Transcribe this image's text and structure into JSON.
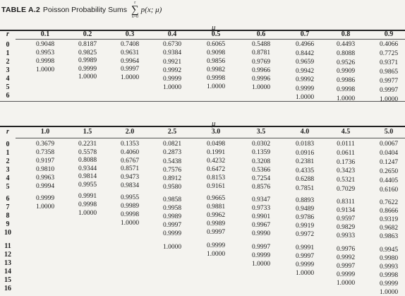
{
  "title": {
    "label": "TABLE A.2",
    "name": "Poisson Probability Sums",
    "sum_upper": "r",
    "sum_symbol": "∑",
    "sum_lower": "x=0",
    "function": "p(x; μ)"
  },
  "tables": [
    {
      "r_header": "r",
      "mu_label": "μ",
      "columns": [
        "0.1",
        "0.2",
        "0.3",
        "0.4",
        "0.5",
        "0.6",
        "0.7",
        "0.8",
        "0.9"
      ],
      "rows": [
        {
          "r": "0",
          "values": [
            "0.9048",
            "0.8187",
            "0.7408",
            "0.6730",
            "0.6065",
            "0.5488",
            "0.4966",
            "0.4493",
            "0.4066"
          ]
        },
        {
          "r": "1",
          "values": [
            "0.9953",
            "0.9825",
            "0.9631",
            "0.9384",
            "0.9098",
            "0.8781",
            "0.8442",
            "0.8088",
            "0.7725"
          ]
        },
        {
          "r": "2",
          "values": [
            "0.9998",
            "0.9989",
            "0.9964",
            "0.9921",
            "0.9856",
            "0.9769",
            "0.9659",
            "0.9526",
            "0.9371"
          ]
        },
        {
          "r": "3",
          "values": [
            "1.0000",
            "0.9999",
            "0.9997",
            "0.9992",
            "0.9982",
            "0.9966",
            "0.9942",
            "0.9909",
            "0.9865"
          ]
        },
        {
          "r": "4",
          "values": [
            "",
            "1.0000",
            "1.0000",
            "0.9999",
            "0.9998",
            "0.9996",
            "0.9992",
            "0.9986",
            "0.9977"
          ]
        },
        {
          "r": "5",
          "values": [
            "",
            "",
            "",
            "1.0000",
            "1.0000",
            "1.0000",
            "0.9999",
            "0.9998",
            "0.9997"
          ]
        },
        {
          "r": "6",
          "values": [
            "",
            "",
            "",
            "",
            "",
            "",
            "1.0000",
            "1.0000",
            "1.0000"
          ]
        }
      ]
    },
    {
      "r_header": "r",
      "mu_label": "μ",
      "columns": [
        "1.0",
        "1.5",
        "2.0",
        "2.5",
        "3.0",
        "3.5",
        "4.0",
        "4.5",
        "5.0"
      ],
      "rows": [
        {
          "r": "0",
          "values": [
            "0.3679",
            "0.2231",
            "0.1353",
            "0.0821",
            "0.0498",
            "0.0302",
            "0.0183",
            "0.0111",
            "0.0067"
          ]
        },
        {
          "r": "1",
          "values": [
            "0.7358",
            "0.5578",
            "0.4060",
            "0.2873",
            "0.1991",
            "0.1359",
            "0.0916",
            "0.0611",
            "0.0404"
          ]
        },
        {
          "r": "2",
          "values": [
            "0.9197",
            "0.8088",
            "0.6767",
            "0.5438",
            "0.4232",
            "0.3208",
            "0.2381",
            "0.1736",
            "0.1247"
          ]
        },
        {
          "r": "3",
          "values": [
            "0.9810",
            "0.9344",
            "0.8571",
            "0.7576",
            "0.6472",
            "0.5366",
            "0.4335",
            "0.3423",
            "0.2650"
          ]
        },
        {
          "r": "4",
          "values": [
            "0.9963",
            "0.9814",
            "0.9473",
            "0.8912",
            "0.8153",
            "0.7254",
            "0.6288",
            "0.5321",
            "0.4405"
          ]
        },
        {
          "r": "5",
          "values": [
            "0.9994",
            "0.9955",
            "0.9834",
            "0.9580",
            "0.9161",
            "0.8576",
            "0.7851",
            "0.7029",
            "0.6160"
          ]
        },
        {
          "r": "6",
          "values": [
            "0.9999",
            "0.9991",
            "0.9955",
            "0.9858",
            "0.9665",
            "0.9347",
            "0.8893",
            "0.8311",
            "0.7622"
          ]
        },
        {
          "r": "7",
          "values": [
            "1.0000",
            "0.9998",
            "0.9989",
            "0.9958",
            "0.9881",
            "0.9733",
            "0.9489",
            "0.9134",
            "0.8666"
          ]
        },
        {
          "r": "8",
          "values": [
            "",
            "1.0000",
            "0.9998",
            "0.9989",
            "0.9962",
            "0.9901",
            "0.9786",
            "0.9597",
            "0.9319"
          ]
        },
        {
          "r": "9",
          "values": [
            "",
            "",
            "1.0000",
            "0.9997",
            "0.9989",
            "0.9967",
            "0.9919",
            "0.9829",
            "0.9682"
          ]
        },
        {
          "r": "10",
          "values": [
            "",
            "",
            "",
            "0.9999",
            "0.9997",
            "0.9990",
            "0.9972",
            "0.9933",
            "0.9863"
          ]
        },
        {
          "r": "11",
          "values": [
            "",
            "",
            "",
            "1.0000",
            "0.9999",
            "0.9997",
            "0.9991",
            "0.9976",
            "0.9945"
          ]
        },
        {
          "r": "12",
          "values": [
            "",
            "",
            "",
            "",
            "1.0000",
            "0.9999",
            "0.9997",
            "0.9992",
            "0.9980"
          ]
        },
        {
          "r": "13",
          "values": [
            "",
            "",
            "",
            "",
            "",
            "1.0000",
            "0.9999",
            "0.9997",
            "0.9993"
          ]
        },
        {
          "r": "14",
          "values": [
            "",
            "",
            "",
            "",
            "",
            "",
            "1.0000",
            "0.9999",
            "0.9998"
          ]
        },
        {
          "r": "15",
          "values": [
            "",
            "",
            "",
            "",
            "",
            "",
            "",
            "1.0000",
            "0.9999"
          ]
        },
        {
          "r": "16",
          "values": [
            "",
            "",
            "",
            "",
            "",
            "",
            "",
            "",
            "1.0000"
          ]
        }
      ]
    }
  ]
}
